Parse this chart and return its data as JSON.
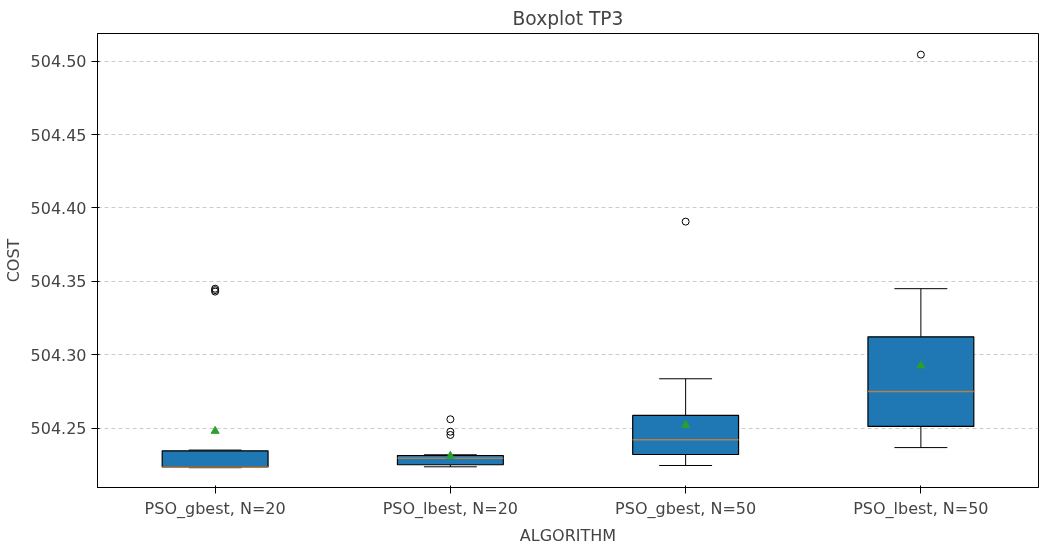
{
  "chart_data": {
    "type": "box",
    "title": "Boxplot TP3",
    "xlabel": "ALGORITHM",
    "ylabel": "COST",
    "categories": [
      "PSO_gbest, N=20",
      "PSO_lbest, N=20",
      "PSO_gbest, N=50",
      "PSO_lbest, N=50"
    ],
    "series": [
      {
        "color": "#1f77b4",
        "boxes": [
          {
            "low": 504.223,
            "q1": 504.2235,
            "median": 504.2235,
            "q3": 504.2345,
            "high": 504.235,
            "mean": 504.248,
            "outliers": [
              504.343,
              504.344,
              504.345
            ]
          },
          {
            "low": 504.2236,
            "q1": 504.225,
            "median": 504.2295,
            "q3": 504.2313,
            "high": 504.2318,
            "mean": 504.231,
            "outliers": [
              504.2453,
              504.2475,
              504.256
            ]
          },
          {
            "low": 504.2245,
            "q1": 504.232,
            "median": 504.242,
            "q3": 504.2586,
            "high": 504.2836,
            "mean": 504.252,
            "outliers": [
              504.3907
            ]
          },
          {
            "low": 504.2367,
            "q1": 504.2511,
            "median": 504.275,
            "q3": 504.3122,
            "high": 504.345,
            "mean": 504.2926,
            "outliers": [
              504.5045
            ]
          }
        ]
      }
    ],
    "ylim": [
      504.2095,
      504.5189
    ],
    "yticks": [
      504.25,
      {
        "value": 504.3,
        "label": "504.30"
      },
      504.35,
      {
        "value": 504.4,
        "label": "504.40"
      },
      504.45,
      {
        "value": 504.5,
        "label": "504.50"
      }
    ],
    "grid": "y"
  }
}
